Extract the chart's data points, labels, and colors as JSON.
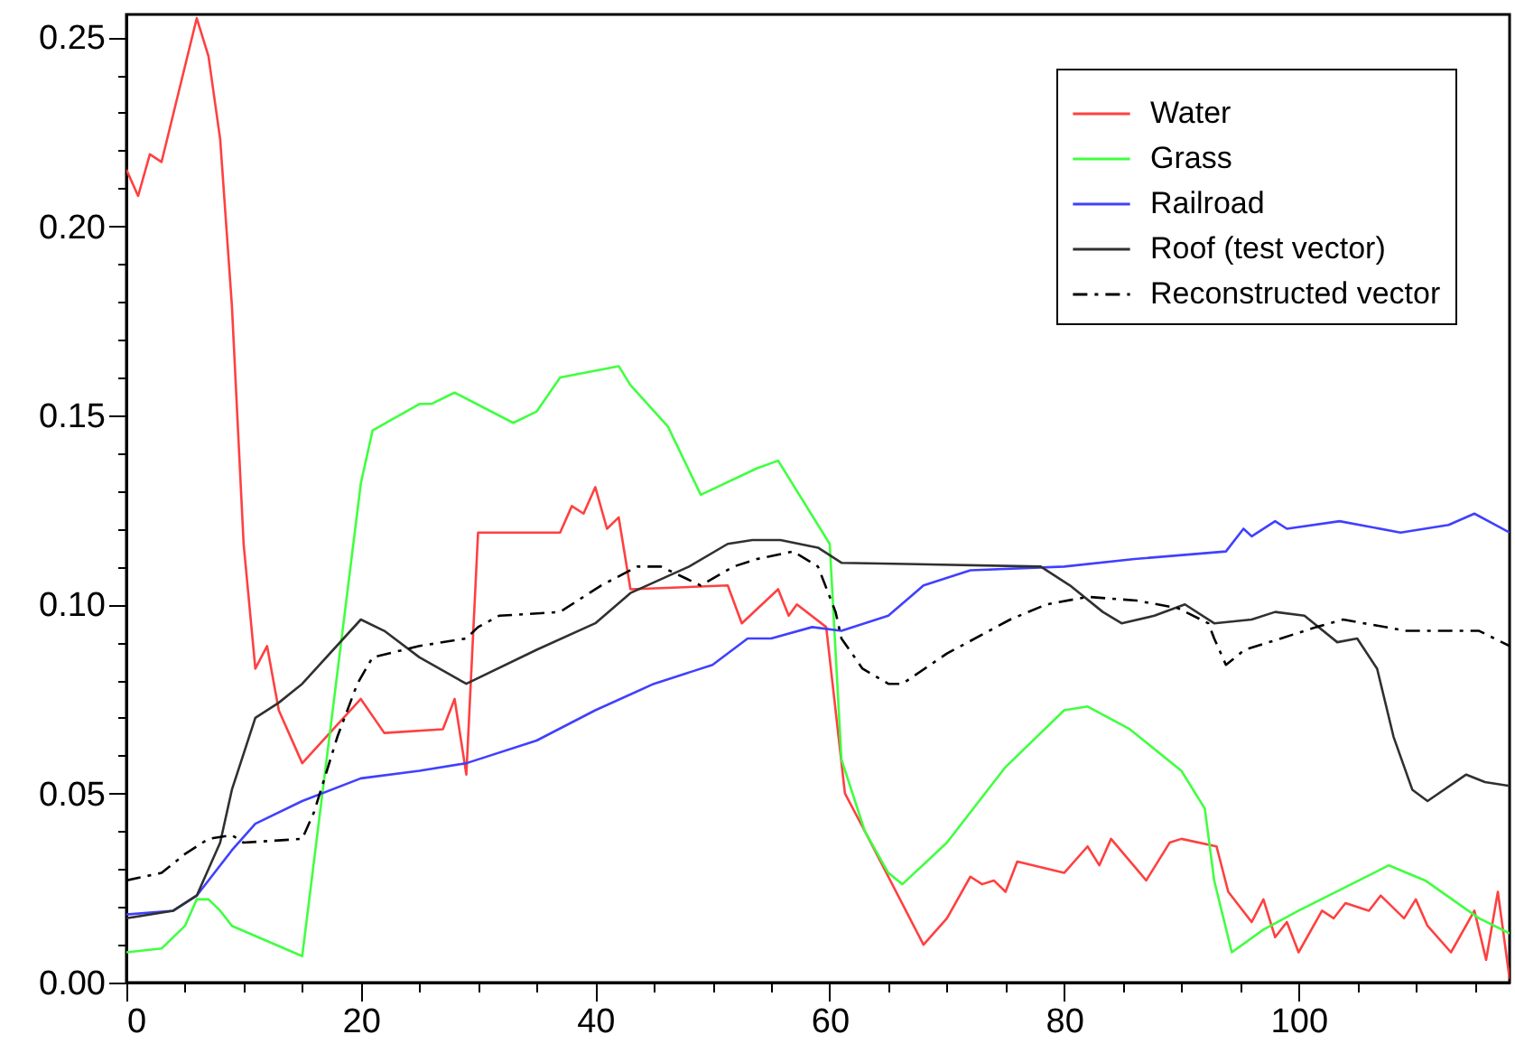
{
  "chart_data": {
    "type": "line",
    "legend": "top right",
    "xlim": [
      0,
      118
    ],
    "ylim": [
      0,
      0.256
    ],
    "xticks": [
      0,
      {
        "value": 5,
        "label": null
      },
      {
        "value": 10,
        "label": null
      },
      {
        "value": 15,
        "label": null
      },
      20,
      {
        "value": 25,
        "label": null
      },
      {
        "value": 30,
        "label": null
      },
      {
        "value": 35,
        "label": null
      },
      40,
      {
        "value": 45,
        "label": null
      },
      {
        "value": 50,
        "label": null
      },
      {
        "value": 55,
        "label": null
      },
      60,
      {
        "value": 65,
        "label": null
      },
      {
        "value": 70,
        "label": null
      },
      {
        "value": 75,
        "label": null
      },
      80,
      {
        "value": 85,
        "label": null
      },
      {
        "value": 90,
        "label": null
      },
      {
        "value": 95,
        "label": null
      },
      100,
      {
        "value": 105,
        "label": null
      },
      {
        "value": 110,
        "label": null
      },
      {
        "value": 115,
        "label": null
      }
    ],
    "yticks": [
      {
        "value": 0,
        "label": "0.00"
      },
      {
        "value": 0.01,
        "label": null
      },
      {
        "value": 0.02,
        "label": null
      },
      {
        "value": 0.03,
        "label": null
      },
      {
        "value": 0.04,
        "label": null
      },
      {
        "value": 0.05,
        "label": "0.05"
      },
      {
        "value": 0.06,
        "label": null
      },
      {
        "value": 0.07,
        "label": null
      },
      {
        "value": 0.08,
        "label": null
      },
      {
        "value": 0.09,
        "label": null
      },
      {
        "value": 0.1,
        "label": "0.10"
      },
      {
        "value": 0.11,
        "label": null
      },
      {
        "value": 0.12,
        "label": null
      },
      {
        "value": 0.13,
        "label": null
      },
      {
        "value": 0.14,
        "label": null
      },
      {
        "value": 0.15,
        "label": "0.15"
      },
      {
        "value": 0.16,
        "label": null
      },
      {
        "value": 0.17,
        "label": null
      },
      {
        "value": 0.18,
        "label": null
      },
      {
        "value": 0.19,
        "label": null
      },
      {
        "value": 0.2,
        "label": "0.20"
      },
      {
        "value": 0.21,
        "label": null
      },
      {
        "value": 0.22,
        "label": null
      },
      {
        "value": 0.23,
        "label": null
      },
      {
        "value": 0.24,
        "label": null
      },
      {
        "value": 0.25,
        "label": "0.25"
      }
    ],
    "series": [
      {
        "name": "Water",
        "color": "#ff4040",
        "line_style": "solid",
        "x": [
          0,
          1,
          2,
          3,
          6,
          7,
          8,
          9,
          10,
          11,
          12,
          13,
          15,
          20,
          22,
          27,
          28,
          29,
          30,
          37,
          38,
          39,
          40,
          41,
          42,
          43,
          51.3,
          52.5,
          55.6,
          56.5,
          57.2,
          59.7,
          61.3,
          63,
          68,
          70,
          72,
          73,
          74,
          75,
          76,
          80,
          82,
          83,
          84,
          87,
          89,
          90,
          93,
          94,
          96,
          97,
          98,
          99,
          100,
          102,
          103,
          104,
          106,
          107,
          109,
          110,
          111,
          113,
          115,
          116,
          117,
          118
        ],
        "values": [
          0.215,
          0.208,
          0.219,
          0.217,
          0.255,
          0.245,
          0.223,
          0.179,
          0.116,
          0.083,
          0.089,
          0.072,
          0.058,
          0.075,
          0.066,
          0.067,
          0.075,
          0.055,
          0.119,
          0.119,
          0.126,
          0.124,
          0.131,
          0.12,
          0.123,
          0.104,
          0.105,
          0.095,
          0.104,
          0.097,
          0.1,
          0.094,
          0.05,
          0.04,
          0.01,
          0.017,
          0.028,
          0.026,
          0.027,
          0.024,
          0.032,
          0.029,
          0.036,
          0.031,
          0.038,
          0.027,
          0.037,
          0.038,
          0.036,
          0.024,
          0.016,
          0.022,
          0.012,
          0.016,
          0.008,
          0.019,
          0.017,
          0.021,
          0.019,
          0.023,
          0.017,
          0.022,
          0.015,
          0.008,
          0.019,
          0.006,
          0.024,
          0.001
        ]
      },
      {
        "name": "Grass",
        "color": "#40ff40",
        "line_style": "solid",
        "x": [
          0,
          3,
          5,
          6,
          7,
          8,
          9,
          12,
          15,
          20,
          21,
          25,
          26,
          28,
          33,
          35,
          37,
          42,
          43,
          46.2,
          49,
          53.8,
          55.6,
          60,
          61,
          63,
          65,
          66.2,
          70,
          75,
          80,
          82,
          85.6,
          90,
          92,
          92.8,
          94.3,
          97,
          100,
          107.7,
          110.8,
          115.4,
          118
        ],
        "values": [
          0.008,
          0.009,
          0.015,
          0.022,
          0.022,
          0.019,
          0.015,
          0.011,
          0.007,
          0.132,
          0.146,
          0.153,
          0.153,
          0.156,
          0.148,
          0.151,
          0.16,
          0.163,
          0.158,
          0.147,
          0.129,
          0.136,
          0.138,
          0.116,
          0.059,
          0.04,
          0.029,
          0.026,
          0.037,
          0.057,
          0.072,
          0.073,
          0.067,
          0.056,
          0.046,
          0.027,
          0.008,
          0.014,
          0.019,
          0.031,
          0.027,
          0.017,
          0.013
        ]
      },
      {
        "name": "Railroad",
        "color": "#4040ff",
        "line_style": "solid",
        "x": [
          0,
          4,
          6,
          9,
          11,
          15,
          20,
          25,
          29,
          35,
          40,
          45,
          50,
          53,
          55,
          58.5,
          61,
          65,
          68,
          72,
          80,
          86,
          93.8,
          95.3,
          96,
          98,
          99,
          103.5,
          108.7,
          112.8,
          115,
          118
        ],
        "values": [
          0.018,
          0.019,
          0.023,
          0.035,
          0.042,
          0.048,
          0.054,
          0.056,
          0.058,
          0.064,
          0.072,
          0.079,
          0.084,
          0.091,
          0.091,
          0.094,
          0.093,
          0.097,
          0.105,
          0.109,
          0.11,
          0.112,
          0.114,
          0.12,
          0.118,
          0.122,
          0.12,
          0.122,
          0.119,
          0.121,
          0.124,
          0.119
        ]
      },
      {
        "name": "Roof (test vector)",
        "color": "#303030",
        "line_style": "solid",
        "x": [
          0,
          4,
          6,
          8,
          9,
          11,
          13,
          15,
          20,
          22,
          25,
          29,
          35,
          40,
          43,
          48,
          51.3,
          53.4,
          55.8,
          59,
          61,
          78,
          80.5,
          83.3,
          84.9,
          87.7,
          90.3,
          92.8,
          96,
          98,
          100.5,
          103.3,
          105,
          106.7,
          108.1,
          109.7,
          111,
          114.3,
          115.9,
          118
        ],
        "values": [
          0.017,
          0.019,
          0.023,
          0.037,
          0.051,
          0.07,
          0.074,
          0.079,
          0.096,
          0.093,
          0.086,
          0.079,
          0.088,
          0.095,
          0.103,
          0.11,
          0.116,
          0.117,
          0.117,
          0.115,
          0.111,
          0.11,
          0.105,
          0.098,
          0.095,
          0.097,
          0.1,
          0.095,
          0.096,
          0.098,
          0.097,
          0.09,
          0.091,
          0.083,
          0.065,
          0.051,
          0.048,
          0.055,
          0.053,
          0.052
        ]
      },
      {
        "name": "Reconstructed vector",
        "color": "#000000",
        "line_style": "dashdot",
        "x": [
          0,
          3,
          5,
          7,
          9,
          10,
          15,
          16,
          18,
          19.7,
          21,
          25,
          29,
          30,
          31.8,
          37,
          40.5,
          43.6,
          45.6,
          49,
          51.8,
          53.8,
          56.9,
          59,
          60.5,
          61,
          62.8,
          65,
          66.2,
          70,
          75.4,
          78.5,
          82,
          86.2,
          89.7,
          92.3,
          92.8,
          93.8,
          95.4,
          98.5,
          101.5,
          103.8,
          109.2,
          115.4,
          118
        ],
        "values": [
          0.027,
          0.029,
          0.034,
          0.038,
          0.039,
          0.037,
          0.038,
          0.045,
          0.065,
          0.079,
          0.086,
          0.089,
          0.091,
          0.094,
          0.097,
          0.098,
          0.105,
          0.11,
          0.11,
          0.105,
          0.11,
          0.112,
          0.114,
          0.11,
          0.098,
          0.091,
          0.083,
          0.079,
          0.079,
          0.087,
          0.096,
          0.1,
          0.102,
          0.101,
          0.099,
          0.095,
          0.091,
          0.084,
          0.088,
          0.091,
          0.094,
          0.096,
          0.093,
          0.093,
          0.089
        ]
      }
    ]
  }
}
